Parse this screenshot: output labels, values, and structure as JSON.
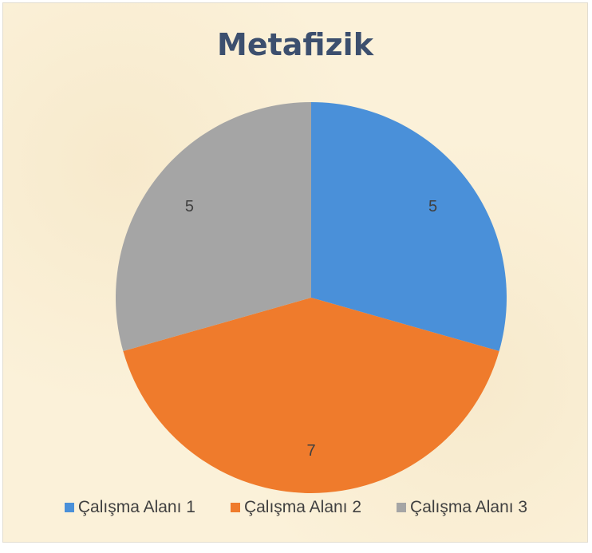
{
  "chart_data": {
    "type": "pie",
    "title": "Metafizik",
    "categories": [
      "Çalışma Alanı 1",
      "Çalışma Alanı 2",
      "Çalışma Alanı 3"
    ],
    "values": [
      5,
      7,
      5
    ],
    "data_labels": [
      "5",
      "7",
      "5"
    ],
    "colors": [
      "#4a90d9",
      "#ef7b2c",
      "#a5a5a5"
    ],
    "legend_position": "bottom"
  }
}
